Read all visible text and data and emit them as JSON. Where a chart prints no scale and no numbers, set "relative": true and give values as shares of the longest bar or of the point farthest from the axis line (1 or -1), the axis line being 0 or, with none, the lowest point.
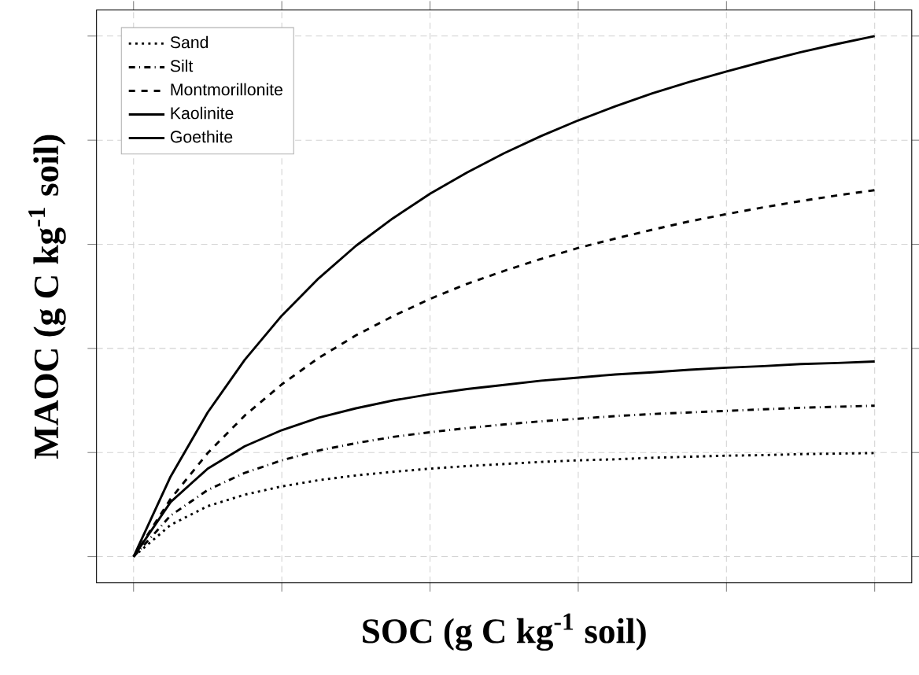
{
  "chart_data": {
    "type": "line",
    "relative": true,
    "xlabel": "SOC (g C kg$^{-1}$ soil)",
    "ylabel": "MAOC (g C kg$^{-1}$ soil)",
    "grid": true,
    "legend": "top left",
    "categories": [
      null,
      null,
      null,
      null,
      null,
      null,
      null,
      null,
      null,
      null,
      null,
      null,
      null,
      null,
      null,
      null,
      null,
      null,
      null,
      null,
      null
    ],
    "series": [
      {
        "name": "Sand",
        "color": "#000000",
        "line_style": "dotted",
        "values": [
          0,
          0.061,
          0.097,
          0.119,
          0.135,
          0.147,
          0.156,
          0.163,
          0.169,
          0.174,
          0.178,
          0.182,
          0.185,
          0.187,
          0.19,
          0.192,
          0.194,
          0.195,
          0.197,
          0.198,
          0.199
        ]
      },
      {
        "name": "Silt",
        "color": "#000000",
        "line_style": "dashdot",
        "values": [
          0,
          0.079,
          0.128,
          0.161,
          0.185,
          0.204,
          0.218,
          0.23,
          0.239,
          0.247,
          0.254,
          0.26,
          0.265,
          0.27,
          0.274,
          0.277,
          0.28,
          0.283,
          0.286,
          0.288,
          0.29
        ]
      },
      {
        "name": "Montmorillonite",
        "color": "#000000",
        "line_style": "dashed",
        "values": [
          0,
          0.111,
          0.199,
          0.271,
          0.331,
          0.382,
          0.425,
          0.462,
          0.495,
          0.524,
          0.549,
          0.572,
          0.593,
          0.611,
          0.628,
          0.644,
          0.658,
          0.671,
          0.683,
          0.694,
          0.704
        ]
      },
      {
        "name": "Kaolinite",
        "color": "#000000",
        "line_style": "solid",
        "values": [
          0,
          0.105,
          0.169,
          0.212,
          0.243,
          0.267,
          0.285,
          0.3,
          0.312,
          0.322,
          0.33,
          0.338,
          0.344,
          0.35,
          0.354,
          0.359,
          0.363,
          0.366,
          0.37,
          0.372,
          0.375
        ]
      },
      {
        "name": "Goethite",
        "color": "#000000",
        "line_style": "solid",
        "values": [
          0,
          0.154,
          0.277,
          0.378,
          0.463,
          0.535,
          0.597,
          0.65,
          0.697,
          0.738,
          0.775,
          0.808,
          0.838,
          0.865,
          0.89,
          0.912,
          0.932,
          0.951,
          0.969,
          0.985,
          1.0
        ]
      }
    ]
  }
}
